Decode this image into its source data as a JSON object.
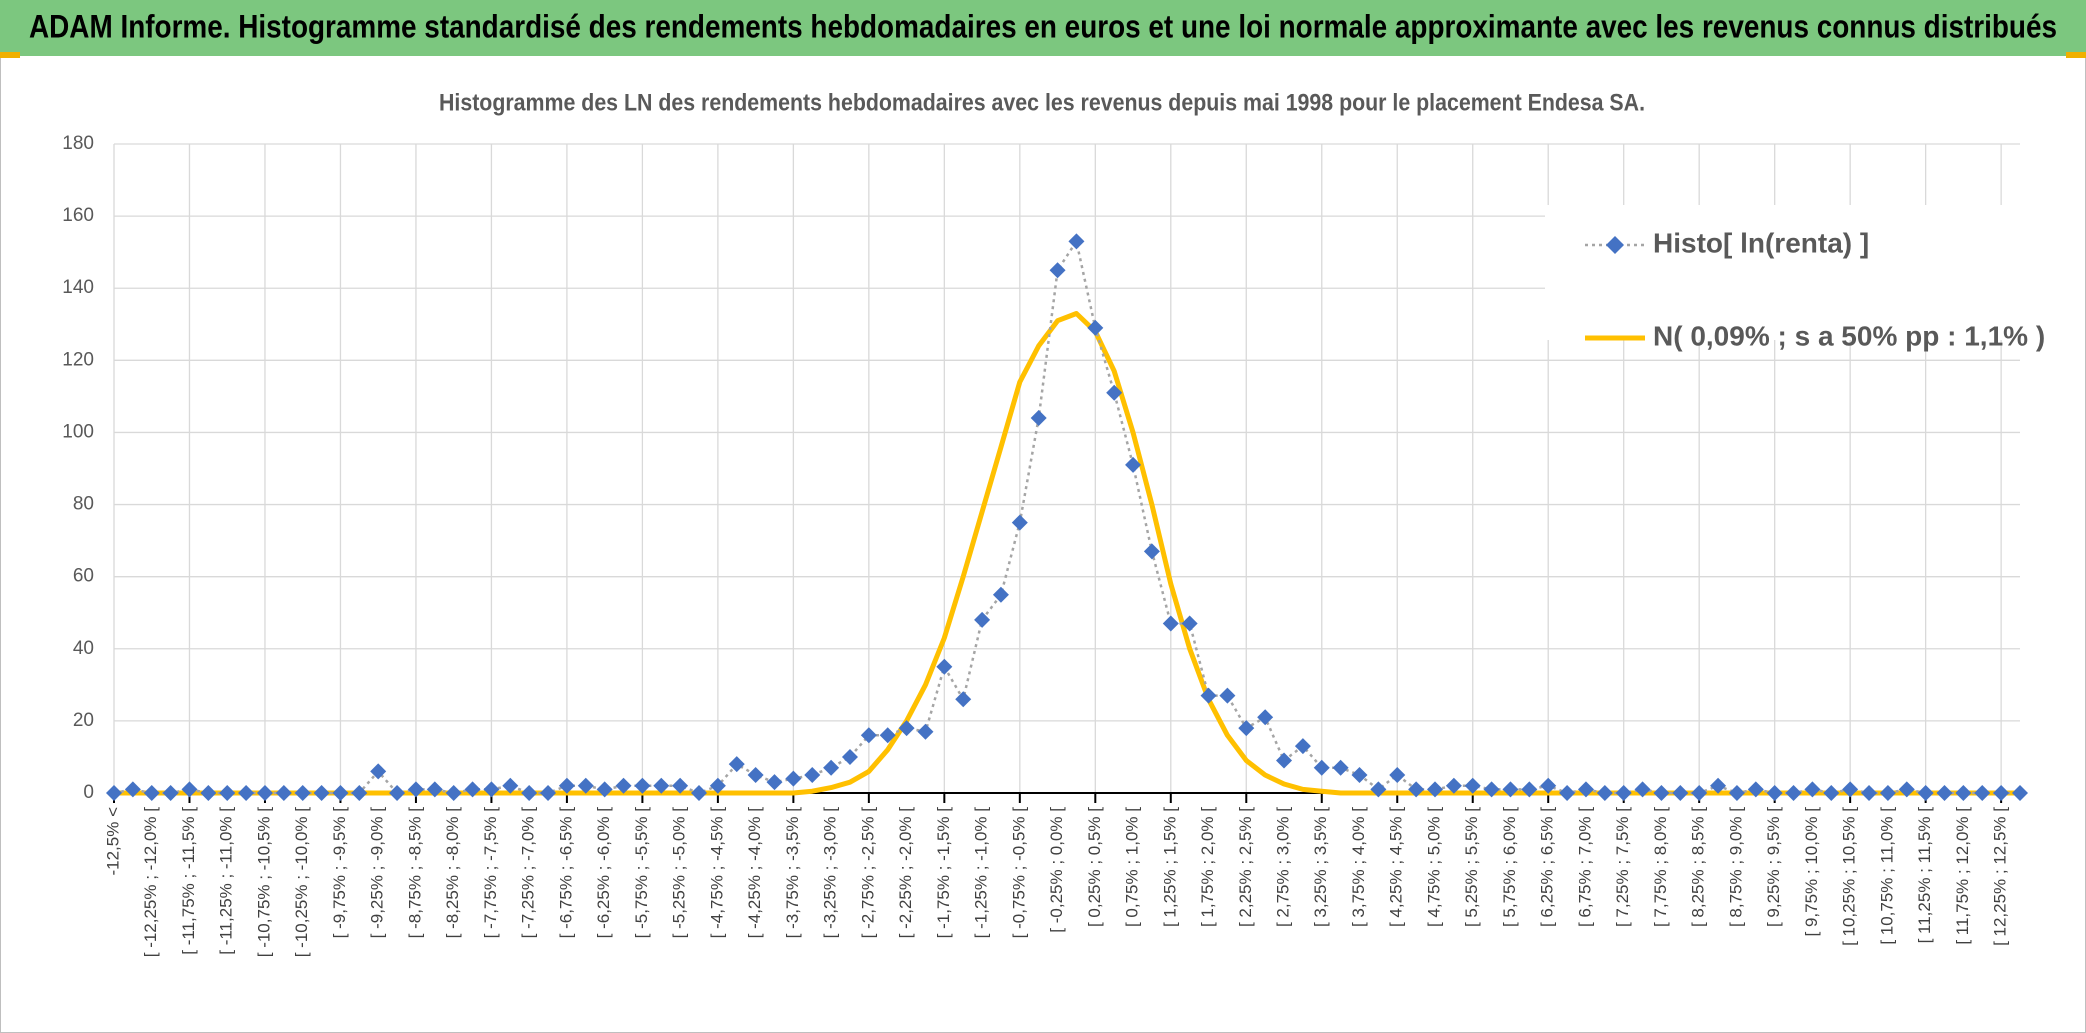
{
  "header": {
    "title": "ADAM Informe. Histogramme standardisé des rendements hebdomadaires en euros et une loi normale approximante avec les revenus connus distribués"
  },
  "chart_data": {
    "type": "line",
    "title": "Histogramme des LN des rendements hebdomadaires avec les revenus depuis mai 1998 pour le placement Endesa SA.",
    "categories": [
      "-12,5% <",
      null,
      "[ -12,25% ; -12,0% [",
      null,
      "[ -11,75% ; -11,5% [",
      null,
      "[ -11,25% ; -11,0% [",
      null,
      "[ -10,75% ; -10,5% [",
      null,
      "[ -10,25% ; -10,0% [",
      null,
      "[ -9,75% ; -9,5% [",
      null,
      "[ -9,25% ; -9,0% [",
      null,
      "[ -8,75% ; -8,5% [",
      null,
      "[ -8,25% ; -8,0% [",
      null,
      "[ -7,75% ; -7,5% [",
      null,
      "[ -7,25% ; -7,0% [",
      null,
      "[ -6,75% ; -6,5% [",
      null,
      "[ -6,25% ; -6,0% [",
      null,
      "[ -5,75% ; -5,5% [",
      null,
      "[ -5,25% ; -5,0% [",
      null,
      "[ -4,75% ; -4,5% [",
      null,
      "[ -4,25% ; -4,0% [",
      null,
      "[ -3,75% ; -3,5% [",
      null,
      "[ -3,25% ; -3,0% [",
      null,
      "[ -2,75% ; -2,5% [",
      null,
      "[ -2,25% ; -2,0% [",
      null,
      "[ -1,75% ; -1,5% [",
      null,
      "[ -1,25% ; -1,0% [",
      null,
      "[ -0,75% ; -0,5% [",
      null,
      "[ -0,25% ; 0,0% [",
      null,
      "[ 0,25% ; 0,5% [",
      null,
      "[ 0,75% ; 1,0% [",
      null,
      "[ 1,25% ; 1,5% [",
      null,
      "[ 1,75% ; 2,0% [",
      null,
      "[ 2,25% ; 2,5% [",
      null,
      "[ 2,75% ; 3,0% [",
      null,
      "[ 3,25% ; 3,5% [",
      null,
      "[ 3,75% ; 4,0% [",
      null,
      "[ 4,25% ; 4,5% [",
      null,
      "[ 4,75% ; 5,0% [",
      null,
      "[ 5,25% ; 5,5% [",
      null,
      "[ 5,75% ; 6,0% [",
      null,
      "[ 6,25% ; 6,5% [",
      null,
      "[ 6,75% ; 7,0% [",
      null,
      "[ 7,25% ; 7,5% [",
      null,
      "[ 7,75% ; 8,0% [",
      null,
      "[ 8,25% ; 8,5% [",
      null,
      "[ 8,75% ; 9,0% [",
      null,
      "[ 9,25% ; 9,5% [",
      null,
      "[ 9,75% ; 10,0% [",
      null,
      "[ 10,25% ; 10,5% [",
      null,
      "[ 10,75% ; 11,0% [",
      null,
      "[ 11,25% ; 11,5% [",
      null,
      "[ 11,75% ; 12,0% [",
      null,
      "[ 12,25% ; 12,5% [",
      null
    ],
    "series": [
      {
        "name": "Histo[ ln(renta) ]",
        "color": "#4472c4",
        "line_color": "#a5a5a5",
        "marker": "diamond",
        "values": [
          0,
          1,
          0,
          0,
          1,
          0,
          0,
          0,
          0,
          0,
          0,
          0,
          0,
          0,
          6,
          0,
          1,
          1,
          0,
          1,
          1,
          2,
          0,
          0,
          2,
          2,
          1,
          2,
          2,
          2,
          2,
          0,
          2,
          8,
          5,
          3,
          4,
          5,
          7,
          10,
          16,
          16,
          18,
          17,
          35,
          26,
          48,
          55,
          75,
          104,
          145,
          153,
          129,
          111,
          91,
          67,
          47,
          47,
          27,
          27,
          18,
          21,
          9,
          13,
          7,
          7,
          5,
          1,
          5,
          1,
          1,
          2,
          2,
          1,
          1,
          1,
          2,
          0,
          1,
          0,
          0,
          1,
          0,
          0,
          0,
          2,
          0,
          1,
          0,
          0,
          1,
          0,
          1,
          0,
          0,
          1,
          0,
          0,
          0,
          0,
          0,
          0
        ]
      },
      {
        "name": "N( 0,09% ; s a 50% pp : 1,1% )",
        "color": "#ffc000",
        "values": [
          0,
          0,
          0,
          0,
          0,
          0,
          0,
          0,
          0,
          0,
          0,
          0,
          0,
          0,
          0,
          0,
          0,
          0,
          0,
          0,
          0,
          0,
          0,
          0,
          0,
          0,
          0,
          0,
          0,
          0,
          0,
          0,
          0,
          0,
          0,
          0,
          0,
          0.5,
          1.5,
          3,
          6,
          12,
          20,
          30,
          43,
          60,
          78,
          96,
          114,
          124,
          131,
          133,
          128,
          117,
          100,
          80,
          58,
          40,
          26,
          16,
          9,
          5,
          2.5,
          1,
          0.5,
          0,
          0,
          0,
          0,
          0,
          0,
          0,
          0,
          0,
          0,
          0,
          0,
          0,
          0,
          0,
          0,
          0,
          0,
          0,
          0,
          0,
          0,
          0,
          0,
          0,
          0,
          0,
          0,
          0,
          0,
          0,
          0,
          0,
          0,
          0,
          0,
          0
        ]
      }
    ],
    "ylim": [
      0,
      180
    ],
    "yticks": [
      0,
      20,
      40,
      60,
      80,
      100,
      120,
      140,
      160,
      180
    ],
    "grid": true,
    "legend": "upper right"
  }
}
